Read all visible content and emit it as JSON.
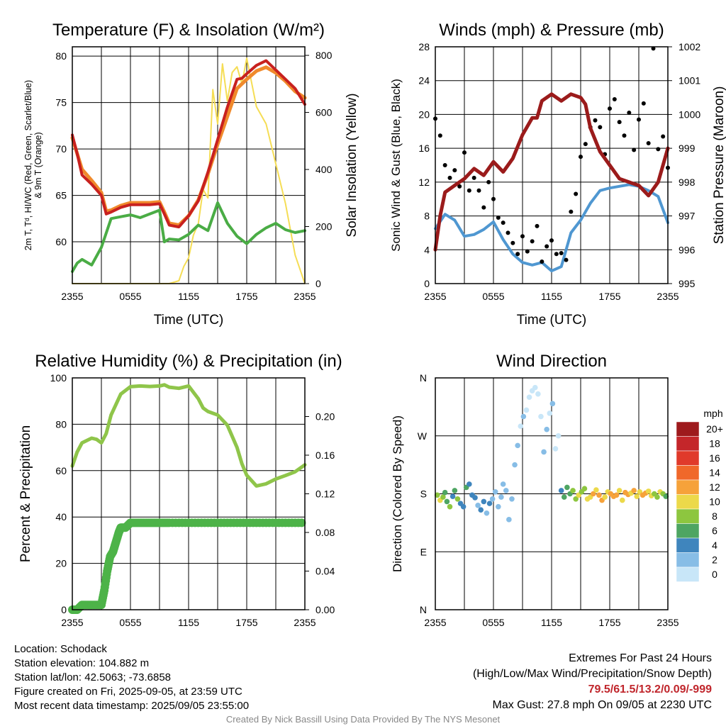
{
  "colors": {
    "temp": "#c8211f",
    "hi": "#e0392b",
    "nine_m": "#f08a2c",
    "dew": "#4aac45",
    "solar": "#f5dd55",
    "wind": "#4f97d1",
    "gust": "#000000",
    "pressure": "#9b1b1b",
    "rh": "#8fc54a",
    "precip": "#4db348"
  },
  "info": {
    "location": "Location: Schodack",
    "elevation": "Station elevation: 104.882 m",
    "latlon": "Station lat/lon: 42.5063; -73.6858",
    "created": "Figure created on Fri, 2025-09-05, at 23:59 UTC",
    "recent": "Most recent data timestamp: 2025/09/05 23:55:00"
  },
  "extremes": {
    "title": "Extremes For Past 24 Hours",
    "subtitle": "(High/Low/Max Wind/Precipitation/Snow Depth)",
    "values": "79.5/61.5/13.2/0.09/-999",
    "gust": "Max Gust: 27.8 mph On 09/05 at 2230 UTC"
  },
  "credit": "Created By Nick Bassill Using Data Provided By The NYS Mesonet",
  "chart_data": [
    {
      "type": "line",
      "title": "Temperature (F) & Insolation (W/m²)",
      "xlabel": "Time (UTC)",
      "ylabel": [
        "2m T, Tᵈ, HI/WC (Red, Green, Scarlet/Blue)",
        "& 9m T (Orange)"
      ],
      "ylabel_right": "Solar Insolation (Yellow)",
      "x_ticks": [
        "2355",
        "0555",
        "1155",
        "1755",
        "2355"
      ],
      "x_range_hours": [
        0,
        24
      ],
      "ylim": [
        55.5,
        81
      ],
      "y_ticks": [
        60,
        65,
        70,
        75,
        80
      ],
      "ylim_right": [
        0,
        830
      ],
      "y_ticks_right": [
        0,
        200,
        400,
        600,
        800
      ],
      "series": [
        {
          "name": "2m T",
          "axis": "left",
          "x": [
            0,
            0.5,
            1,
            2,
            3,
            3.5,
            4,
            5,
            6,
            7,
            8,
            9,
            9.5,
            10,
            11,
            12,
            13,
            14,
            15,
            16,
            17,
            17.5,
            18,
            19,
            20,
            21,
            22,
            23,
            24
          ],
          "y": [
            71.5,
            69.5,
            67.2,
            66.2,
            65,
            63,
            63.2,
            63.7,
            64,
            64,
            64,
            64.1,
            63,
            61.8,
            61.6,
            62.8,
            64.4,
            67.5,
            71,
            74.5,
            77.5,
            77.6,
            78.1,
            79,
            79.5,
            78.5,
            77.5,
            76.5,
            74.8
          ]
        },
        {
          "name": "9m T",
          "axis": "left",
          "x": [
            0,
            1,
            2,
            3,
            3.5,
            4,
            5,
            6,
            7,
            8,
            9,
            9.5,
            10,
            11,
            12,
            13,
            14,
            15,
            16,
            17,
            18,
            19,
            20,
            21,
            22,
            23,
            24
          ],
          "y": [
            71.2,
            67.8,
            66.6,
            65.3,
            63.3,
            63.4,
            63.9,
            64.2,
            64.2,
            64.2,
            64.3,
            63.2,
            62,
            61.8,
            62.8,
            64.5,
            67.3,
            70.5,
            73.5,
            76.5,
            77.5,
            78.4,
            78.8,
            78.2,
            77.3,
            76.2,
            75.5
          ]
        },
        {
          "name": "Td",
          "axis": "left",
          "x": [
            0,
            0.5,
            1,
            2,
            3,
            4,
            5,
            6,
            7,
            8,
            9,
            9.5,
            10,
            11,
            12,
            13,
            14,
            15,
            16,
            17,
            18,
            19,
            20,
            21,
            22,
            23,
            24
          ],
          "y": [
            56.8,
            57.7,
            58.1,
            57.5,
            59.4,
            62.5,
            62.7,
            62.9,
            62.6,
            63.0,
            63.4,
            60.0,
            60.3,
            60.2,
            60.8,
            61.8,
            61.2,
            64.2,
            62.0,
            60.6,
            59.8,
            60.8,
            61.5,
            62,
            61.3,
            61,
            61.2
          ]
        },
        {
          "name": "Solar Insolation",
          "axis": "right",
          "x": [
            0,
            8,
            9,
            10,
            11,
            11.5,
            12,
            12.5,
            13,
            13.5,
            14,
            14.5,
            15,
            15.5,
            16,
            16.5,
            17,
            17.5,
            18,
            19,
            20,
            21,
            22,
            23,
            24
          ],
          "y": [
            0,
            0,
            0,
            0,
            10,
            60,
            90,
            170,
            210,
            330,
            300,
            680,
            560,
            770,
            640,
            740,
            760,
            700,
            790,
            620,
            560,
            420,
            280,
            100,
            0
          ]
        }
      ]
    },
    {
      "type": "line",
      "title": "Winds (mph) & Pressure (mb)",
      "xlabel": "Time (UTC)",
      "ylabel": "Sonic Wind & Gust (Blue, Black)",
      "ylabel_right": "Station Pressure (Maroon)",
      "x_ticks": [
        "2355",
        "0555",
        "1155",
        "1755",
        "2355"
      ],
      "x_range_hours": [
        0,
        24
      ],
      "ylim": [
        0,
        28
      ],
      "y_ticks": [
        0,
        4,
        8,
        12,
        16,
        20,
        24,
        28
      ],
      "ylim_right": [
        995,
        1002
      ],
      "y_ticks_right": [
        995,
        996,
        997,
        998,
        999,
        1000,
        1001,
        1002
      ],
      "series": [
        {
          "name": "Wind",
          "axis": "left",
          "x": [
            0,
            1,
            2,
            3,
            4,
            5,
            6,
            7,
            8,
            9,
            10,
            11,
            12,
            13,
            14,
            15,
            16,
            17,
            18,
            19,
            20,
            21,
            22,
            23,
            24
          ],
          "y": [
            6.5,
            8.2,
            7.5,
            5.6,
            5.8,
            6.4,
            7.3,
            5.2,
            3.5,
            2.5,
            2.2,
            2.5,
            1.5,
            2,
            6,
            7.5,
            9.5,
            11,
            11.3,
            11.5,
            11.7,
            11.5,
            11,
            10.3,
            7.2
          ]
        },
        {
          "name": "Gust",
          "axis": "left",
          "x": [
            0,
            0.5,
            1,
            1.5,
            2,
            2.5,
            3,
            3.5,
            4,
            4.5,
            5,
            5.5,
            6,
            6.5,
            7,
            7.5,
            8,
            8.5,
            9,
            9.5,
            10,
            10.5,
            11,
            11.5,
            12,
            12.5,
            13,
            13.5,
            14,
            14.5,
            15,
            15.5,
            16,
            16.5,
            17,
            17.5,
            18,
            18.5,
            19,
            19.5,
            20,
            20.5,
            21,
            21.5,
            22,
            22.5,
            23,
            23.5,
            24
          ],
          "y": [
            19.5,
            17.5,
            14,
            12.5,
            13.4,
            11.5,
            15.5,
            11,
            12.5,
            11,
            9,
            12,
            10,
            7.8,
            7.2,
            6,
            4.8,
            3.5,
            5.6,
            3.8,
            5,
            6.8,
            2.6,
            4.4,
            5.1,
            3.5,
            3.6,
            2.8,
            8.5,
            10.6,
            15,
            16.5,
            18.5,
            19.3,
            18.5,
            15.3,
            20.7,
            21.8,
            19.1,
            17.5,
            20.2,
            15.8,
            19.4,
            21.3,
            16.6,
            27.8,
            15.9,
            17.4,
            13.7
          ]
        },
        {
          "name": "Station Pressure",
          "axis": "right",
          "x": [
            0,
            0.5,
            1,
            2,
            3,
            4,
            5,
            6,
            7,
            8,
            9,
            10,
            10.5,
            11,
            12,
            13,
            14,
            15,
            15.5,
            16,
            17,
            18,
            19,
            20,
            21,
            22,
            23,
            24
          ],
          "y": [
            996,
            997,
            997.7,
            997.9,
            998.1,
            998.4,
            998.2,
            998.6,
            998.3,
            998.7,
            999.4,
            999.9,
            999.9,
            1000.4,
            1000.6,
            1000.4,
            1000.6,
            1000.5,
            1000.3,
            999.6,
            998.9,
            998.5,
            998.1,
            998,
            997.9,
            997.6,
            998,
            999
          ]
        }
      ]
    },
    {
      "type": "line",
      "title": "Relative Humidity (%) & Precipitation (in)",
      "ylabel": "Percent & Precipitation",
      "x_ticks": [
        "2355",
        "0555",
        "1155",
        "1755",
        "2355"
      ],
      "x_range_hours": [
        0,
        24
      ],
      "ylim": [
        0,
        100
      ],
      "y_ticks": [
        0,
        20,
        40,
        60,
        80,
        100
      ],
      "ylim_right": [
        0,
        0.24
      ],
      "y_ticks_right": [
        "0.00",
        "0.04",
        "0.08",
        "0.12",
        "0.16",
        "0.20"
      ],
      "series": [
        {
          "name": "Relative Humidity",
          "axis": "left",
          "x": [
            0,
            0.5,
            1,
            2,
            2.5,
            3,
            3.5,
            4,
            5,
            6,
            7,
            8,
            9,
            9.5,
            10,
            11,
            12,
            13,
            13.5,
            14,
            15,
            16,
            17,
            17.5,
            18,
            19,
            20,
            21,
            22,
            23,
            24
          ],
          "y": [
            62,
            68,
            72,
            74,
            73.5,
            72,
            76,
            84,
            93,
            96.2,
            96.5,
            96.3,
            96.5,
            97,
            96,
            95.5,
            96.5,
            91,
            87,
            85.5,
            84,
            79.6,
            70,
            63,
            58,
            53.4,
            54.3,
            56.4,
            57.9,
            59.5,
            62.5
          ]
        },
        {
          "name": "Precipitation",
          "axis": "right",
          "x": [
            0,
            0.5,
            1,
            2,
            3,
            3.3,
            3.6,
            3.9,
            4.2,
            4.5,
            4.8,
            5,
            5.5,
            6,
            7,
            8,
            9,
            10,
            12,
            14,
            16,
            18,
            20,
            22,
            24
          ],
          "y": [
            0,
            0,
            0.005,
            0.005,
            0.005,
            0.02,
            0.04,
            0.055,
            0.06,
            0.07,
            0.08,
            0.085,
            0.085,
            0.09,
            0.09,
            0.09,
            0.09,
            0.09,
            0.09,
            0.09,
            0.09,
            0.09,
            0.09,
            0.09,
            0.09
          ]
        }
      ]
    },
    {
      "type": "scatter",
      "title": "Wind Direction",
      "ylabel": "Direction (Colored By Speed)",
      "x_ticks": [
        "2355",
        "0555",
        "1155",
        "1755",
        "2355"
      ],
      "x_range_hours": [
        0,
        24
      ],
      "ylim": [
        0,
        360
      ],
      "y_tick_labels": [
        "N",
        "E",
        "S",
        "W",
        "N"
      ],
      "y_tick_values": [
        0,
        90,
        180,
        270,
        360
      ],
      "legend_title": "mph",
      "legend_labels": [
        "20+",
        "18",
        "16",
        "14",
        "12",
        "10",
        "8",
        "6",
        "4",
        "2",
        "0"
      ],
      "legend_colors": [
        "#9e1a1d",
        "#c4262a",
        "#e03a2b",
        "#f0682a",
        "#f6a23a",
        "#ecd94a",
        "#8dc63f",
        "#4ea562",
        "#3f85bd",
        "#87bde6",
        "#c8e6f8"
      ],
      "series": [
        {
          "name": "Wind Direction",
          "x": [
            0.2,
            0.5,
            0.8,
            1.0,
            1.2,
            1.5,
            1.8,
            2.0,
            2.3,
            2.6,
            2.9,
            3.2,
            3.5,
            3.8,
            4.1,
            4.4,
            4.7,
            5.0,
            5.3,
            5.6,
            5.9,
            6.2,
            6.5,
            6.8,
            7.0,
            7.3,
            7.6,
            7.9,
            8.2,
            8.5,
            8.8,
            9.1,
            9.4,
            9.7,
            10.0,
            10.3,
            10.6,
            10.9,
            11.2,
            11.5,
            11.8,
            12.1,
            12.4,
            12.7,
            13.0,
            13.3,
            13.6,
            13.9,
            14.2,
            14.5,
            14.8,
            15.1,
            15.4,
            15.7,
            16.0,
            16.3,
            16.6,
            16.9,
            17.2,
            17.5,
            17.8,
            18.1,
            18.4,
            18.7,
            19.0,
            19.3,
            19.6,
            19.9,
            20.2,
            20.5,
            20.8,
            21.1,
            21.4,
            21.7,
            22.0,
            22.3,
            22.6,
            22.9,
            23.2,
            23.5,
            23.8
          ],
          "y": [
            178,
            170,
            175,
            182,
            168,
            160,
            176,
            185,
            172,
            165,
            160,
            190,
            195,
            178,
            174,
            162,
            155,
            168,
            150,
            165,
            172,
            183,
            160,
            175,
            195,
            185,
            140,
            172,
            225,
            255,
            285,
            300,
            310,
            330,
            340,
            345,
            335,
            300,
            245,
            280,
            305,
            320,
            250,
            270,
            185,
            175,
            190,
            180,
            185,
            172,
            178,
            183,
            188,
            172,
            175,
            180,
            186,
            178,
            170,
            175,
            183,
            180,
            176,
            178,
            185,
            170,
            182,
            179,
            181,
            185,
            176,
            183,
            178,
            181,
            184,
            177,
            180,
            175,
            183,
            180,
            176
          ],
          "speed": [
            8,
            10,
            9,
            7,
            6,
            8,
            5,
            6,
            8,
            4,
            5,
            6,
            4,
            5,
            4,
            3,
            4,
            5,
            3,
            4,
            3,
            2,
            3,
            2,
            3,
            2,
            2,
            3,
            2,
            2,
            1,
            2,
            1,
            1,
            1,
            1,
            0,
            1,
            2,
            2,
            1,
            2,
            1,
            1,
            5,
            6,
            7,
            6,
            8,
            9,
            10,
            8,
            9,
            11,
            10,
            12,
            11,
            13,
            12,
            10,
            11,
            12,
            13,
            12,
            11,
            10,
            12,
            13,
            11,
            12,
            10,
            11,
            13,
            12,
            11,
            10,
            9,
            8,
            10,
            8,
            7
          ]
        }
      ]
    }
  ]
}
